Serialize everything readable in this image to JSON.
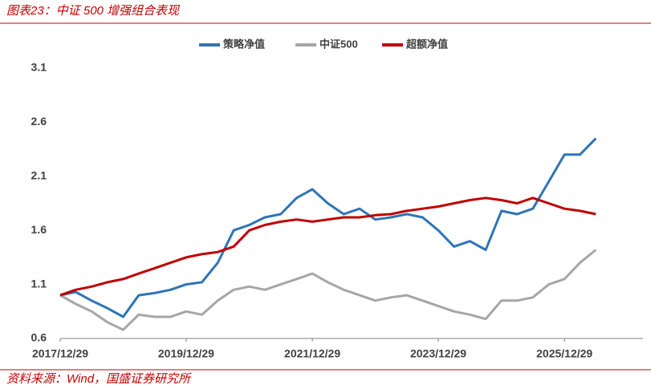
{
  "chart_data": {
    "type": "line",
    "title": "图表23：中证 500 增强组合表现",
    "source": "资料来源：Wind，国盛证券研究所",
    "x": [
      "2017/12/29",
      "2018/03/29",
      "2018/06/29",
      "2018/09/29",
      "2018/12/29",
      "2019/03/29",
      "2019/06/29",
      "2019/09/29",
      "2019/12/29",
      "2020/03/29",
      "2020/06/29",
      "2020/09/29",
      "2020/12/29",
      "2021/03/29",
      "2021/06/29",
      "2021/09/29",
      "2021/12/29",
      "2022/03/29",
      "2022/06/29",
      "2022/09/29",
      "2022/12/29",
      "2023/03/29",
      "2023/06/29",
      "2023/09/29",
      "2023/12/29",
      "2024/03/29",
      "2024/06/29",
      "2024/09/29",
      "2024/12/29",
      "2025/03/29",
      "2025/06/29",
      "2025/09/29",
      "2025/12/29",
      "2026/03/29",
      "2026/06/29"
    ],
    "series": [
      {
        "name": "策略净值",
        "color": "#2e75b6",
        "values": [
          1.0,
          1.03,
          0.95,
          0.88,
          0.8,
          1.0,
          1.02,
          1.05,
          1.1,
          1.12,
          1.3,
          1.6,
          1.65,
          1.72,
          1.75,
          1.9,
          1.98,
          1.85,
          1.75,
          1.8,
          1.7,
          1.72,
          1.75,
          1.72,
          1.6,
          1.45,
          1.5,
          1.42,
          1.78,
          1.75,
          1.8,
          2.05,
          2.3,
          2.3,
          2.45
        ]
      },
      {
        "name": "中证500",
        "color": "#a6a6a6",
        "values": [
          1.0,
          0.92,
          0.85,
          0.75,
          0.68,
          0.82,
          0.8,
          0.8,
          0.85,
          0.82,
          0.95,
          1.05,
          1.08,
          1.05,
          1.1,
          1.15,
          1.2,
          1.12,
          1.05,
          1.0,
          0.95,
          0.98,
          1.0,
          0.95,
          0.9,
          0.85,
          0.82,
          0.78,
          0.95,
          0.95,
          0.98,
          1.1,
          1.15,
          1.3,
          1.42
        ]
      },
      {
        "name": "超额净值",
        "color": "#c00000",
        "values": [
          1.0,
          1.05,
          1.08,
          1.12,
          1.15,
          1.2,
          1.25,
          1.3,
          1.35,
          1.38,
          1.4,
          1.45,
          1.6,
          1.65,
          1.68,
          1.7,
          1.68,
          1.7,
          1.72,
          1.72,
          1.74,
          1.75,
          1.78,
          1.8,
          1.82,
          1.85,
          1.88,
          1.9,
          1.88,
          1.85,
          1.9,
          1.85,
          1.8,
          1.78,
          1.75
        ]
      }
    ],
    "xlim": [
      "2017/12/29",
      "2027/03/29"
    ],
    "xticks": [
      "2017/12/29",
      "2019/12/29",
      "2021/12/29",
      "2023/12/29",
      "2025/12/29"
    ],
    "ylim": [
      0.6,
      3.1
    ],
    "yticks": [
      0.6,
      1.1,
      1.6,
      2.1,
      2.6,
      3.1
    ],
    "grid": false,
    "legend": "top"
  }
}
